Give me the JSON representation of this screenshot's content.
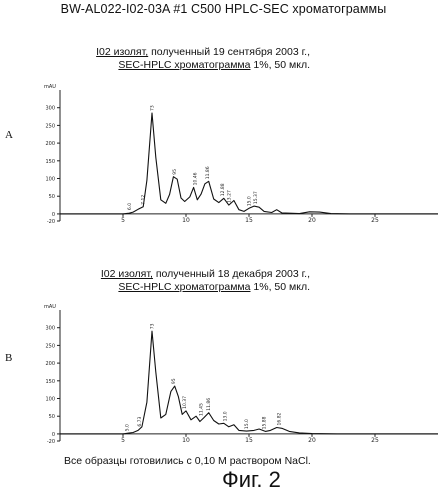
{
  "title": "BW-AL022-I02-03A #1 C500   HPLC-SEC хроматограммы",
  "footer_note": "Все образцы готовились с 0,10 М раствором NaCl.",
  "figure_label": "Фиг. 2",
  "chart_data": [
    {
      "type": "line",
      "panel_label": "A",
      "caption_line1_prefix": "I02 изолят,",
      "caption_line1_rest": " полученный 19 сентября 2003 г.,",
      "caption_line2_prefix": "SEC-HPLC хроматограмма",
      "caption_line2_rest": " 1%, 50 мкл.",
      "y_unit": "mAU",
      "xlim": [
        0,
        30
      ],
      "ylim": [
        -20,
        350
      ],
      "xticks": [
        5,
        10,
        15,
        20,
        25
      ],
      "yticks": [
        -20,
        0,
        50,
        100,
        150,
        200,
        250,
        300
      ],
      "series": [
        {
          "x": [
            0,
            5,
            5.5,
            5.8,
            6.2,
            6.6,
            6.9,
            7.3,
            7.6,
            8.0,
            8.4,
            8.7,
            9.0,
            9.3,
            9.6,
            9.9,
            10.3,
            10.6,
            10.9,
            11.2,
            11.5,
            11.8,
            12.2,
            12.6,
            13.0,
            13.4,
            13.8,
            14.2,
            14.6,
            15.0,
            15.4,
            15.8,
            16.2,
            16.8,
            17.2,
            17.6,
            18.2,
            19.0,
            19.8,
            20.6,
            21.5,
            23,
            25,
            28,
            30
          ],
          "y": [
            0,
            0,
            2,
            5,
            13,
            20,
            95,
            285,
            160,
            40,
            30,
            55,
            105,
            98,
            45,
            35,
            48,
            75,
            40,
            56,
            85,
            92,
            42,
            32,
            44,
            25,
            38,
            12,
            7,
            16,
            22,
            19,
            7,
            4,
            12,
            3,
            2,
            1,
            6,
            5,
            1,
            0,
            0,
            0,
            0
          ]
        }
      ],
      "peak_labels": [
        {
          "x": 5.5,
          "y": 5,
          "text": "6.0"
        },
        {
          "x": 6.6,
          "y": 20,
          "text": "7.12"
        },
        {
          "x": 7.3,
          "y": 285,
          "text": "73"
        },
        {
          "x": 9.1,
          "y": 105,
          "text": "95"
        },
        {
          "x": 10.7,
          "y": 75,
          "text": "10.46"
        },
        {
          "x": 11.7,
          "y": 92,
          "text": "11.86"
        },
        {
          "x": 12.9,
          "y": 44,
          "text": "12.88"
        },
        {
          "x": 13.4,
          "y": 25,
          "text": "13.27"
        },
        {
          "x": 15.0,
          "y": 16,
          "text": "15.0"
        },
        {
          "x": 15.5,
          "y": 22,
          "text": "15.37"
        }
      ]
    },
    {
      "type": "line",
      "panel_label": "B",
      "caption_line1_prefix": "I02 изолят,",
      "caption_line1_rest": " полученный 18 декабря 2003 г.,",
      "caption_line2_prefix": "SEC-HPLC хроматограмма",
      "caption_line2_rest": " 1%, 50 мкл.",
      "y_unit": "mAU",
      "xlim": [
        0,
        30
      ],
      "ylim": [
        -20,
        350
      ],
      "xticks": [
        5,
        10,
        15,
        20,
        25
      ],
      "yticks": [
        -20,
        0,
        50,
        100,
        150,
        200,
        250,
        300
      ],
      "series": [
        {
          "x": [
            0,
            5,
            5.4,
            5.8,
            6.2,
            6.5,
            6.9,
            7.3,
            7.6,
            8.0,
            8.4,
            8.8,
            9.1,
            9.4,
            9.7,
            10.0,
            10.4,
            10.8,
            11.1,
            11.4,
            11.8,
            12.2,
            12.6,
            13.0,
            13.4,
            13.8,
            14.2,
            14.8,
            15.4,
            15.8,
            16.3,
            16.7,
            17.2,
            17.6,
            18.2,
            19.0,
            20,
            22,
            25,
            28,
            30
          ],
          "y": [
            0,
            0,
            2,
            4,
            10,
            20,
            90,
            290,
            175,
            45,
            55,
            120,
            135,
            105,
            55,
            65,
            40,
            50,
            35,
            45,
            60,
            38,
            28,
            30,
            20,
            26,
            10,
            8,
            10,
            14,
            7,
            10,
            18,
            16,
            7,
            3,
            1,
            0,
            0,
            0,
            0
          ]
        }
      ],
      "peak_labels": [
        {
          "x": 5.3,
          "y": 2,
          "text": "5.0"
        },
        {
          "x": 6.3,
          "y": 15,
          "text": "6.73"
        },
        {
          "x": 7.3,
          "y": 290,
          "text": "73"
        },
        {
          "x": 9.0,
          "y": 135,
          "text": "95"
        },
        {
          "x": 9.9,
          "y": 65,
          "text": "10.37"
        },
        {
          "x": 11.2,
          "y": 45,
          "text": "11.45"
        },
        {
          "x": 11.8,
          "y": 60,
          "text": "11.86"
        },
        {
          "x": 13.1,
          "y": 30,
          "text": "13.0"
        },
        {
          "x": 14.8,
          "y": 8,
          "text": "15.0"
        },
        {
          "x": 16.2,
          "y": 7,
          "text": "15.88"
        },
        {
          "x": 17.4,
          "y": 18,
          "text": "16.82"
        }
      ]
    }
  ]
}
